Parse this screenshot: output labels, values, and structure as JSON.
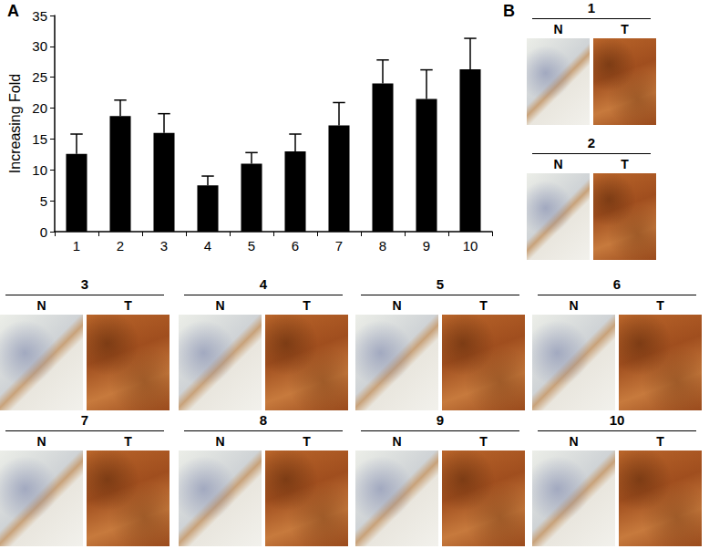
{
  "chart_data": {
    "type": "bar",
    "y_label": "Increasing Fold",
    "categories": [
      "1",
      "2",
      "3",
      "4",
      "5",
      "6",
      "7",
      "8",
      "9",
      "10"
    ],
    "values": [
      12.6,
      18.7,
      16.0,
      7.5,
      11.0,
      13.0,
      17.2,
      24.0,
      21.5,
      26.3
    ],
    "error": [
      3.2,
      2.6,
      3.1,
      1.5,
      1.8,
      2.8,
      3.7,
      3.8,
      4.7,
      5.0
    ],
    "color": "#000000",
    "ylim": [
      0,
      35
    ],
    "yticks": [
      0,
      5,
      10,
      15,
      20,
      25,
      30,
      35
    ],
    "grid": false
  },
  "panel_labels": [
    "A",
    "B"
  ],
  "tissue_panels": {
    "tissue_labels": [
      "N",
      "T"
    ],
    "samples": [
      "1",
      "2",
      "3",
      "4",
      "5",
      "6",
      "7",
      "8",
      "9",
      "10"
    ]
  }
}
